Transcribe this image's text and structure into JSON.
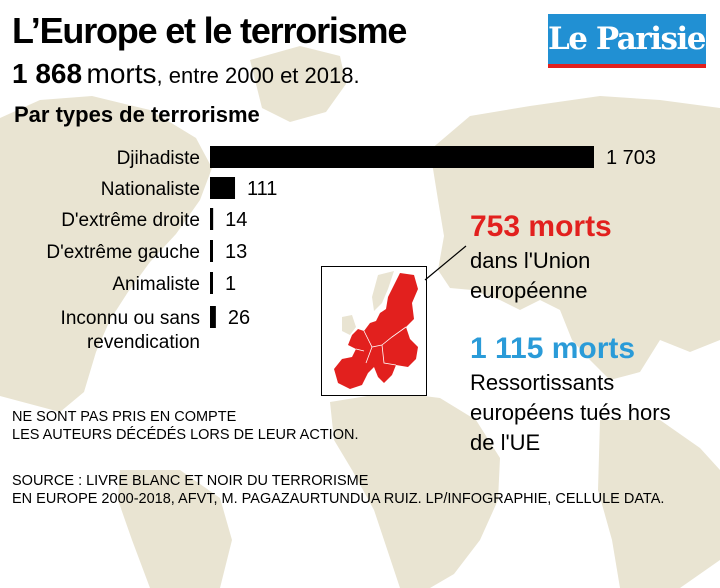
{
  "title": "L’Europe et le terrorisme",
  "subtitle": {
    "total": "1 868",
    "unit": "morts",
    "period": ", entre 2000 et 2018."
  },
  "logo": "Le Parisien",
  "section_title": "Par types de terrorisme",
  "chart_data": {
    "type": "bar",
    "orientation": "horizontal",
    "categories": [
      [
        "Djihadiste"
      ],
      [
        "Nationaliste"
      ],
      [
        "D'extrême droite"
      ],
      [
        "D'extrême gauche"
      ],
      [
        "Animaliste"
      ],
      [
        "Inconnu ou sans",
        "revendication"
      ]
    ],
    "values": [
      1703,
      111,
      14,
      13,
      1,
      26
    ],
    "value_labels": [
      "1 703",
      "111",
      "14",
      "13",
      "1",
      "26"
    ],
    "bar_color": "#000000",
    "grid": false
  },
  "stats": [
    {
      "value": "753 morts",
      "caption": "dans l'Union européenne",
      "color": "#e2201e"
    },
    {
      "value": "1 115 morts",
      "caption": "Ressortissants européens tués hors de l'UE",
      "color": "#2a9bd8"
    }
  ],
  "note": [
    "NE SONT PAS PRIS EN COMPTE",
    "LES AUTEURS DÉCÉDÉS LORS DE LEUR ACTION."
  ],
  "source": [
    "SOURCE : LIVRE BLANC ET NOIR DU TERRORISME",
    "EN EUROPE 2000-2018, AFVT, M. PAGAZAURTUNDUA RUIZ. LP/INFOGRAPHIE, CELLULE DATA."
  ],
  "colors": {
    "map_land": "#e9e4d2",
    "eu_highlight": "#e2201e",
    "logo_bg": "#2190d3"
  }
}
